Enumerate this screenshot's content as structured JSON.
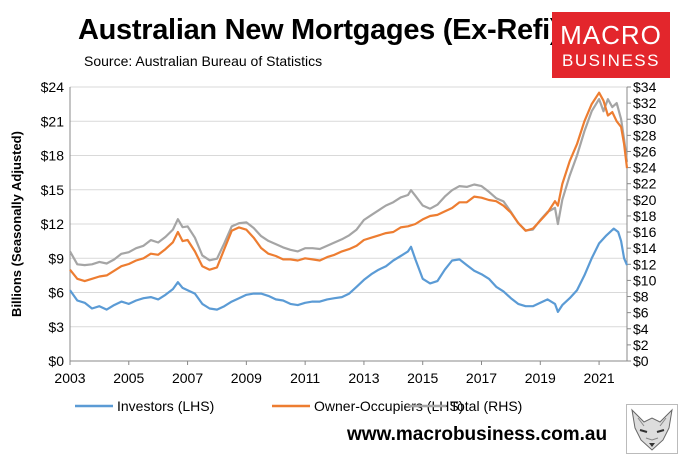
{
  "header": {
    "title": "Australian New Mortgages (Ex-Refi)",
    "subtitle": "Source: Australian Bureau of Statistics"
  },
  "logo": {
    "line1": "MACRO",
    "line2": "BUSINESS",
    "bg_color": "#e3262c",
    "icon": "fox-mascot-icon"
  },
  "footer": {
    "url": "www.macrobusiness.com.au"
  },
  "chart_data": {
    "type": "line",
    "ylabel": "Billions (Seasonally Adjusted)",
    "ylim_left": [
      0,
      24
    ],
    "ylim_right": [
      0,
      34
    ],
    "xlim": [
      2003,
      2021.95
    ],
    "x_ticks": [
      "2003",
      "2005",
      "2007",
      "2009",
      "2011",
      "2013",
      "2015",
      "2017",
      "2019",
      "2021"
    ],
    "y_ticks_left": [
      "$0",
      "$3",
      "$6",
      "$9",
      "$12",
      "$15",
      "$18",
      "$21",
      "$24"
    ],
    "y_ticks_right": [
      "$0",
      "$2",
      "$4",
      "$6",
      "$8",
      "$10",
      "$12",
      "$14",
      "$16",
      "$18",
      "$20",
      "$22",
      "$24",
      "$26",
      "$28",
      "$30",
      "$32",
      "$34"
    ],
    "grid": "horizontal",
    "legend": "bottom",
    "series": [
      {
        "name": "Investors (LHS)",
        "axis": "left",
        "color": "#5b9bd5",
        "points": [
          [
            2003.0,
            6.2
          ],
          [
            2003.25,
            5.3
          ],
          [
            2003.5,
            5.1
          ],
          [
            2003.75,
            4.6
          ],
          [
            2004.0,
            4.8
          ],
          [
            2004.25,
            4.5
          ],
          [
            2004.5,
            4.9
          ],
          [
            2004.75,
            5.2
          ],
          [
            2005.0,
            5.0
          ],
          [
            2005.25,
            5.3
          ],
          [
            2005.5,
            5.5
          ],
          [
            2005.75,
            5.6
          ],
          [
            2006.0,
            5.4
          ],
          [
            2006.25,
            5.8
          ],
          [
            2006.5,
            6.3
          ],
          [
            2006.67,
            6.9
          ],
          [
            2006.83,
            6.4
          ],
          [
            2007.0,
            6.2
          ],
          [
            2007.25,
            5.9
          ],
          [
            2007.5,
            5.0
          ],
          [
            2007.75,
            4.6
          ],
          [
            2008.0,
            4.5
          ],
          [
            2008.25,
            4.8
          ],
          [
            2008.5,
            5.2
          ],
          [
            2008.75,
            5.5
          ],
          [
            2009.0,
            5.8
          ],
          [
            2009.25,
            5.9
          ],
          [
            2009.5,
            5.9
          ],
          [
            2009.75,
            5.7
          ],
          [
            2010.0,
            5.4
          ],
          [
            2010.25,
            5.3
          ],
          [
            2010.5,
            5.0
          ],
          [
            2010.75,
            4.9
          ],
          [
            2011.0,
            5.1
          ],
          [
            2011.25,
            5.2
          ],
          [
            2011.5,
            5.2
          ],
          [
            2011.75,
            5.4
          ],
          [
            2012.0,
            5.5
          ],
          [
            2012.25,
            5.6
          ],
          [
            2012.5,
            5.9
          ],
          [
            2012.75,
            6.5
          ],
          [
            2013.0,
            7.1
          ],
          [
            2013.25,
            7.6
          ],
          [
            2013.5,
            8.0
          ],
          [
            2013.75,
            8.3
          ],
          [
            2014.0,
            8.8
          ],
          [
            2014.25,
            9.2
          ],
          [
            2014.5,
            9.6
          ],
          [
            2014.6,
            10.0
          ],
          [
            2014.75,
            8.9
          ],
          [
            2015.0,
            7.2
          ],
          [
            2015.25,
            6.8
          ],
          [
            2015.5,
            7.0
          ],
          [
            2015.75,
            8.0
          ],
          [
            2016.0,
            8.8
          ],
          [
            2016.25,
            8.9
          ],
          [
            2016.5,
            8.4
          ],
          [
            2016.75,
            7.9
          ],
          [
            2017.0,
            7.6
          ],
          [
            2017.25,
            7.2
          ],
          [
            2017.5,
            6.5
          ],
          [
            2017.75,
            6.1
          ],
          [
            2018.0,
            5.5
          ],
          [
            2018.25,
            5.0
          ],
          [
            2018.5,
            4.8
          ],
          [
            2018.75,
            4.8
          ],
          [
            2019.0,
            5.1
          ],
          [
            2019.25,
            5.4
          ],
          [
            2019.5,
            5.0
          ],
          [
            2019.6,
            4.3
          ],
          [
            2019.75,
            4.9
          ],
          [
            2020.0,
            5.5
          ],
          [
            2020.25,
            6.2
          ],
          [
            2020.5,
            7.5
          ],
          [
            2020.75,
            9.0
          ],
          [
            2021.0,
            10.3
          ],
          [
            2021.25,
            11.0
          ],
          [
            2021.5,
            11.6
          ],
          [
            2021.65,
            11.3
          ],
          [
            2021.75,
            10.5
          ],
          [
            2021.85,
            9.0
          ],
          [
            2021.95,
            8.4
          ]
        ]
      },
      {
        "name": "Owner-Occupiers (LHS)",
        "axis": "left",
        "color": "#ed7d31",
        "points": [
          [
            2003.0,
            8.0
          ],
          [
            2003.25,
            7.2
          ],
          [
            2003.5,
            7.0
          ],
          [
            2003.75,
            7.2
          ],
          [
            2004.0,
            7.4
          ],
          [
            2004.25,
            7.5
          ],
          [
            2004.5,
            7.9
          ],
          [
            2004.75,
            8.3
          ],
          [
            2005.0,
            8.5
          ],
          [
            2005.25,
            8.8
          ],
          [
            2005.5,
            9.0
          ],
          [
            2005.75,
            9.4
          ],
          [
            2006.0,
            9.3
          ],
          [
            2006.25,
            9.8
          ],
          [
            2006.5,
            10.4
          ],
          [
            2006.67,
            11.3
          ],
          [
            2006.83,
            10.5
          ],
          [
            2007.0,
            10.6
          ],
          [
            2007.25,
            9.6
          ],
          [
            2007.5,
            8.3
          ],
          [
            2007.75,
            8.0
          ],
          [
            2008.0,
            8.2
          ],
          [
            2008.25,
            9.8
          ],
          [
            2008.5,
            11.4
          ],
          [
            2008.75,
            11.7
          ],
          [
            2009.0,
            11.5
          ],
          [
            2009.25,
            10.8
          ],
          [
            2009.5,
            9.9
          ],
          [
            2009.75,
            9.4
          ],
          [
            2010.0,
            9.2
          ],
          [
            2010.25,
            8.9
          ],
          [
            2010.5,
            8.9
          ],
          [
            2010.75,
            8.8
          ],
          [
            2011.0,
            9.0
          ],
          [
            2011.25,
            8.9
          ],
          [
            2011.5,
            8.8
          ],
          [
            2011.75,
            9.1
          ],
          [
            2012.0,
            9.3
          ],
          [
            2012.25,
            9.6
          ],
          [
            2012.5,
            9.8
          ],
          [
            2012.75,
            10.1
          ],
          [
            2013.0,
            10.6
          ],
          [
            2013.25,
            10.8
          ],
          [
            2013.5,
            11.0
          ],
          [
            2013.75,
            11.2
          ],
          [
            2014.0,
            11.3
          ],
          [
            2014.25,
            11.7
          ],
          [
            2014.5,
            11.8
          ],
          [
            2014.75,
            12.0
          ],
          [
            2015.0,
            12.4
          ],
          [
            2015.25,
            12.7
          ],
          [
            2015.5,
            12.8
          ],
          [
            2015.75,
            13.1
          ],
          [
            2016.0,
            13.4
          ],
          [
            2016.25,
            13.9
          ],
          [
            2016.5,
            13.9
          ],
          [
            2016.75,
            14.4
          ],
          [
            2017.0,
            14.3
          ],
          [
            2017.25,
            14.1
          ],
          [
            2017.5,
            14.0
          ],
          [
            2017.75,
            13.6
          ],
          [
            2018.0,
            13.0
          ],
          [
            2018.25,
            12.1
          ],
          [
            2018.5,
            11.4
          ],
          [
            2018.75,
            11.6
          ],
          [
            2019.0,
            12.3
          ],
          [
            2019.25,
            13.0
          ],
          [
            2019.5,
            14.0
          ],
          [
            2019.6,
            13.6
          ],
          [
            2019.75,
            15.5
          ],
          [
            2020.0,
            17.5
          ],
          [
            2020.25,
            19.0
          ],
          [
            2020.5,
            21.0
          ],
          [
            2020.75,
            22.5
          ],
          [
            2021.0,
            23.5
          ],
          [
            2021.15,
            22.8
          ],
          [
            2021.3,
            21.5
          ],
          [
            2021.45,
            21.8
          ],
          [
            2021.6,
            21.0
          ],
          [
            2021.75,
            20.5
          ],
          [
            2021.85,
            19.0
          ],
          [
            2021.95,
            16.9
          ]
        ]
      },
      {
        "name": "Total (RHS)",
        "axis": "right",
        "color": "#a5a5a5",
        "points": [
          [
            2003.0,
            13.6
          ],
          [
            2003.25,
            12.0
          ],
          [
            2003.5,
            11.9
          ],
          [
            2003.75,
            12.0
          ],
          [
            2004.0,
            12.3
          ],
          [
            2004.25,
            12.1
          ],
          [
            2004.5,
            12.6
          ],
          [
            2004.75,
            13.3
          ],
          [
            2005.0,
            13.5
          ],
          [
            2005.25,
            14.0
          ],
          [
            2005.5,
            14.3
          ],
          [
            2005.75,
            15.0
          ],
          [
            2006.0,
            14.7
          ],
          [
            2006.25,
            15.4
          ],
          [
            2006.5,
            16.3
          ],
          [
            2006.67,
            17.6
          ],
          [
            2006.83,
            16.6
          ],
          [
            2007.0,
            16.7
          ],
          [
            2007.25,
            15.3
          ],
          [
            2007.5,
            13.1
          ],
          [
            2007.75,
            12.5
          ],
          [
            2008.0,
            12.7
          ],
          [
            2008.25,
            14.6
          ],
          [
            2008.5,
            16.7
          ],
          [
            2008.75,
            17.1
          ],
          [
            2009.0,
            17.2
          ],
          [
            2009.25,
            16.5
          ],
          [
            2009.5,
            15.5
          ],
          [
            2009.75,
            14.9
          ],
          [
            2010.0,
            14.5
          ],
          [
            2010.25,
            14.1
          ],
          [
            2010.5,
            13.8
          ],
          [
            2010.75,
            13.6
          ],
          [
            2011.0,
            14.0
          ],
          [
            2011.25,
            14.0
          ],
          [
            2011.5,
            13.9
          ],
          [
            2011.75,
            14.3
          ],
          [
            2012.0,
            14.7
          ],
          [
            2012.25,
            15.1
          ],
          [
            2012.5,
            15.6
          ],
          [
            2012.75,
            16.3
          ],
          [
            2013.0,
            17.5
          ],
          [
            2013.25,
            18.1
          ],
          [
            2013.5,
            18.7
          ],
          [
            2013.75,
            19.3
          ],
          [
            2014.0,
            19.7
          ],
          [
            2014.25,
            20.3
          ],
          [
            2014.5,
            20.6
          ],
          [
            2014.6,
            21.2
          ],
          [
            2014.75,
            20.5
          ],
          [
            2015.0,
            19.3
          ],
          [
            2015.25,
            18.9
          ],
          [
            2015.5,
            19.4
          ],
          [
            2015.75,
            20.4
          ],
          [
            2016.0,
            21.2
          ],
          [
            2016.25,
            21.7
          ],
          [
            2016.5,
            21.6
          ],
          [
            2016.75,
            21.9
          ],
          [
            2017.0,
            21.7
          ],
          [
            2017.25,
            21.0
          ],
          [
            2017.5,
            20.2
          ],
          [
            2017.75,
            19.8
          ],
          [
            2018.0,
            18.5
          ],
          [
            2018.25,
            17.1
          ],
          [
            2018.5,
            16.2
          ],
          [
            2018.75,
            16.3
          ],
          [
            2019.0,
            17.5
          ],
          [
            2019.25,
            18.5
          ],
          [
            2019.5,
            19.0
          ],
          [
            2019.6,
            17.0
          ],
          [
            2019.75,
            20.0
          ],
          [
            2020.0,
            23.0
          ],
          [
            2020.25,
            25.5
          ],
          [
            2020.5,
            28.5
          ],
          [
            2020.75,
            31.0
          ],
          [
            2021.0,
            32.5
          ],
          [
            2021.15,
            31.0
          ],
          [
            2021.3,
            32.5
          ],
          [
            2021.45,
            31.5
          ],
          [
            2021.6,
            32.0
          ],
          [
            2021.75,
            30.0
          ],
          [
            2021.85,
            27.5
          ],
          [
            2021.95,
            24.7
          ]
        ]
      }
    ]
  }
}
